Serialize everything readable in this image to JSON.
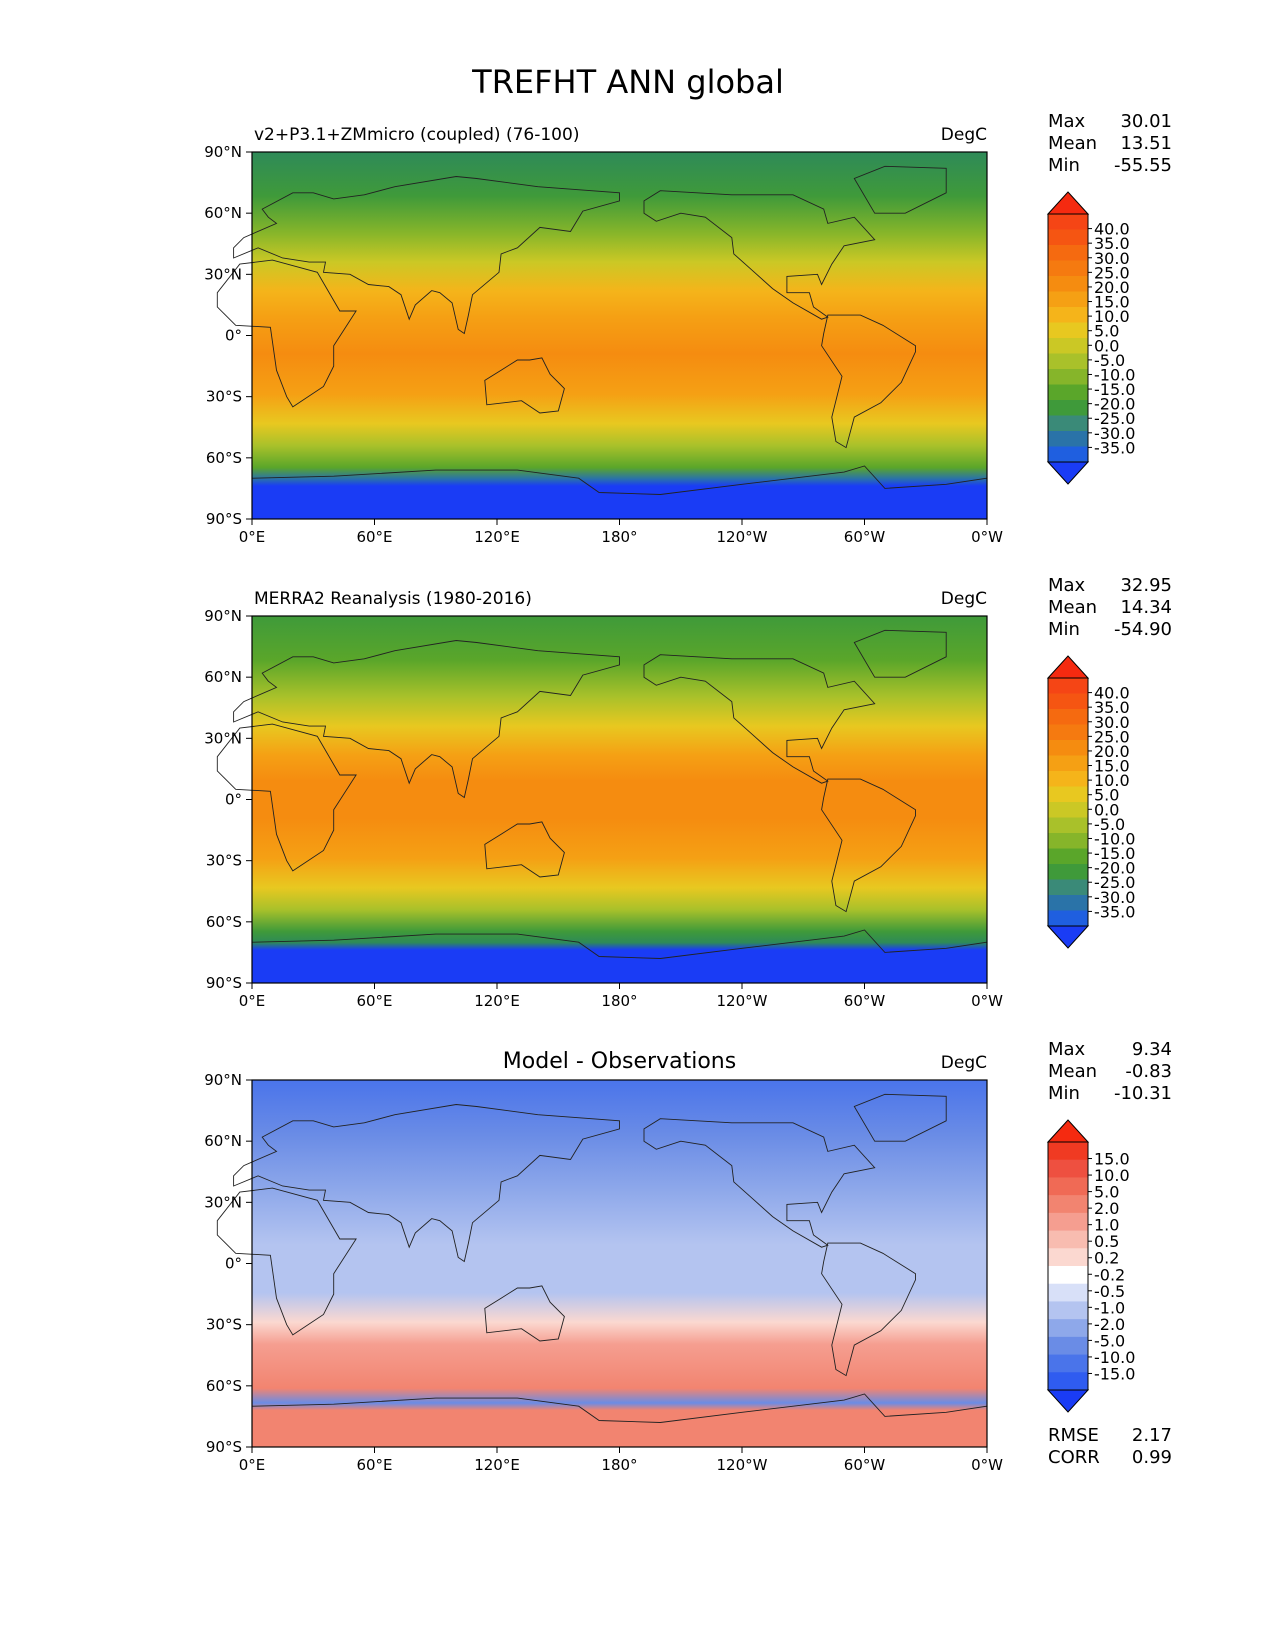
{
  "title": "TREFHT ANN global",
  "chart_data": [
    {
      "type": "heatmap",
      "panel": "test",
      "title": "v2+P3.1+ZMmicro (coupled) (76-100)",
      "units": "DegC",
      "stats": [
        {
          "label": "Max",
          "value": "30.01"
        },
        {
          "label": "Mean",
          "value": "13.51"
        },
        {
          "label": "Min",
          "value": "-55.55"
        }
      ],
      "xticks": [
        "0°E",
        "60°E",
        "120°E",
        "180°",
        "120°W",
        "60°W",
        "0°W"
      ],
      "yticks": [
        "90°N",
        "60°N",
        "30°N",
        "0°",
        "30°S",
        "60°S",
        "90°S"
      ],
      "xlim": [
        0,
        360
      ],
      "ylim": [
        -90,
        90
      ],
      "colorbar_labels": [
        "40.0",
        "35.0",
        "30.0",
        "25.0",
        "20.0",
        "15.0",
        "10.0",
        "5.0",
        "0.0",
        "-5.0",
        "-10.0",
        "-15.0",
        "-20.0",
        "-25.0",
        "-30.0",
        "-35.0"
      ],
      "colorbar_colors": [
        "#1a3cf5",
        "#1f5fe0",
        "#2a73a8",
        "#3a8a78",
        "#3f9a3a",
        "#5aa62a",
        "#86b52a",
        "#a9c12a",
        "#cbc825",
        "#e8c820",
        "#f5b41a",
        "#f5a014",
        "#f58c10",
        "#f57a10",
        "#f56a10",
        "#f55512",
        "#f54515",
        "#f52a10"
      ],
      "extend": "both",
      "stats_extra": []
    },
    {
      "type": "heatmap",
      "panel": "reference",
      "title": "MERRA2 Reanalysis (1980-2016)",
      "units": "DegC",
      "stats": [
        {
          "label": "Max",
          "value": "32.95"
        },
        {
          "label": "Mean",
          "value": "14.34"
        },
        {
          "label": "Min",
          "value": "-54.90"
        }
      ],
      "xticks": [
        "0°E",
        "60°E",
        "120°E",
        "180°",
        "120°W",
        "60°W",
        "0°W"
      ],
      "yticks": [
        "90°N",
        "60°N",
        "30°N",
        "0°",
        "30°S",
        "60°S",
        "90°S"
      ],
      "xlim": [
        0,
        360
      ],
      "ylim": [
        -90,
        90
      ],
      "colorbar_labels": [
        "40.0",
        "35.0",
        "30.0",
        "25.0",
        "20.0",
        "15.0",
        "10.0",
        "5.0",
        "0.0",
        "-5.0",
        "-10.0",
        "-15.0",
        "-20.0",
        "-25.0",
        "-30.0",
        "-35.0"
      ],
      "colorbar_colors": [
        "#1a3cf5",
        "#1f5fe0",
        "#2a73a8",
        "#3a8a78",
        "#3f9a3a",
        "#5aa62a",
        "#86b52a",
        "#a9c12a",
        "#cbc825",
        "#e8c820",
        "#f5b41a",
        "#f5a014",
        "#f58c10",
        "#f57a10",
        "#f56a10",
        "#f55512",
        "#f54515",
        "#f52a10"
      ],
      "extend": "both",
      "stats_extra": []
    },
    {
      "type": "heatmap",
      "panel": "difference",
      "title": "Model - Observations",
      "units": "DegC",
      "stats": [
        {
          "label": "Max",
          "value": "9.34"
        },
        {
          "label": "Mean",
          "value": "-0.83"
        },
        {
          "label": "Min",
          "value": "-10.31"
        }
      ],
      "xticks": [
        "0°E",
        "60°E",
        "120°E",
        "180°",
        "120°W",
        "60°W",
        "0°W"
      ],
      "yticks": [
        "90°N",
        "60°N",
        "30°N",
        "0°",
        "30°S",
        "60°S",
        "90°S"
      ],
      "xlim": [
        0,
        360
      ],
      "ylim": [
        -90,
        90
      ],
      "colorbar_labels": [
        "15.0",
        "10.0",
        "5.0",
        "2.0",
        "1.0",
        "0.5",
        "0.2",
        "-0.2",
        "-0.5",
        "-1.0",
        "-2.0",
        "-5.0",
        "-10.0",
        "-15.0"
      ],
      "colorbar_colors": [
        "#1a3cf5",
        "#2f5cf0",
        "#4a74ea",
        "#6a8ce6",
        "#8ea8ea",
        "#b4c4f0",
        "#d8e0f8",
        "#ffffff",
        "#fbd8d0",
        "#f8bcb0",
        "#f59e90",
        "#f28470",
        "#f06a55",
        "#ee5040",
        "#f03a22",
        "#f52a10"
      ],
      "extend": "both",
      "stats_extra": [
        {
          "label": "RMSE",
          "value": "2.17"
        },
        {
          "label": "CORR",
          "value": "0.99"
        }
      ]
    }
  ]
}
